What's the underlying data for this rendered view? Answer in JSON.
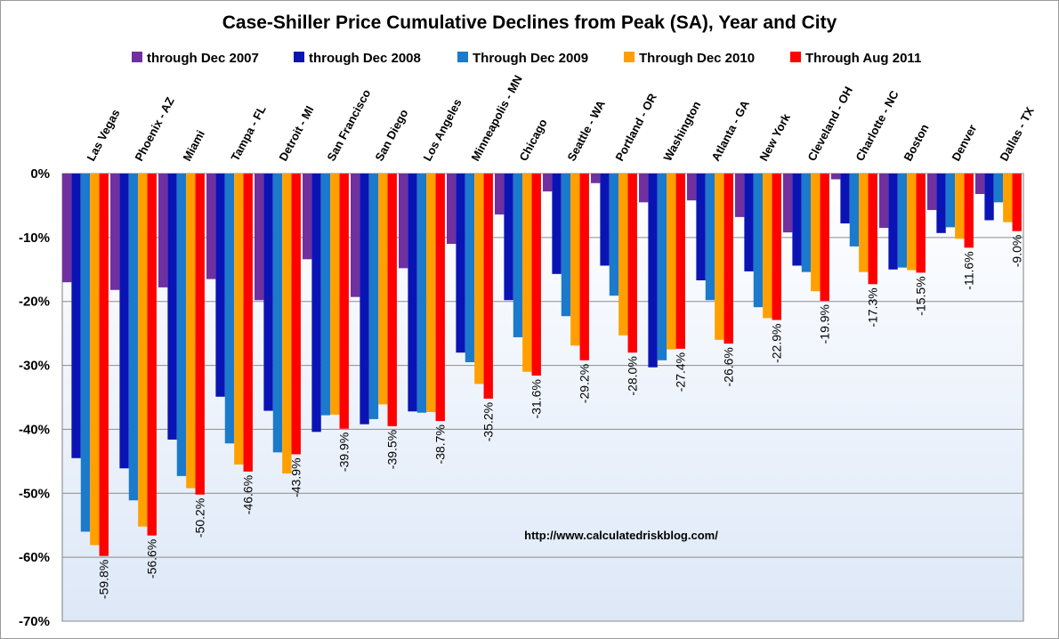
{
  "chart_data": {
    "type": "bar",
    "title": "Case-Shiller Price Cumulative Declines from Peak (SA),  Year and City",
    "source_text": "http://www.calculatedriskblog.com/",
    "ylim": [
      -70,
      0
    ],
    "y_ticks": [
      0,
      -10,
      -20,
      -30,
      -40,
      -50,
      -60,
      -70
    ],
    "y_tick_labels": [
      "0%",
      "-10%",
      "-20%",
      "-30%",
      "-40%",
      "-50%",
      "-60%",
      "-70%"
    ],
    "grid": true,
    "legend_position": "top",
    "categories": [
      "Las Vegas",
      "Phoenix - AZ",
      "Miami",
      "Tampa - FL",
      "Detroit - MI",
      "San Francisco",
      "San Diego",
      "Los Angeles",
      "Minneapolis - MN",
      "Chicago",
      "Seattle - WA",
      "Portland - OR",
      "Washington",
      "Atlanta - GA",
      "New York",
      "Cleveland - OH",
      "Charlotte - NC",
      "Boston",
      "Denver",
      "Dallas - TX"
    ],
    "series": [
      {
        "name": "through Dec 2007",
        "color": "#7030A0",
        "values": [
          -17.0,
          -18.2,
          -17.8,
          -16.5,
          -19.8,
          -13.4,
          -19.3,
          -14.8,
          -11.0,
          -6.4,
          -2.8,
          -1.5,
          -4.5,
          -4.2,
          -6.8,
          -9.2,
          -0.9,
          -8.5,
          -5.7,
          -3.2
        ]
      },
      {
        "name": "through Dec 2008",
        "color": "#0A14B4",
        "values": [
          -44.5,
          -46.1,
          -41.6,
          -34.9,
          -37.1,
          -40.4,
          -39.2,
          -37.2,
          -28.0,
          -19.8,
          -15.7,
          -14.4,
          -30.3,
          -16.7,
          -15.3,
          -14.4,
          -7.8,
          -15.0,
          -9.3,
          -7.3
        ]
      },
      {
        "name": "Through Dec 2009",
        "color": "#1B7ACB",
        "values": [
          -56.0,
          -51.1,
          -47.3,
          -42.2,
          -43.6,
          -37.8,
          -38.4,
          -37.4,
          -29.5,
          -25.6,
          -22.3,
          -19.1,
          -29.2,
          -19.8,
          -20.9,
          -15.4,
          -11.4,
          -14.7,
          -8.4,
          -4.5
        ]
      },
      {
        "name": "Through Dec 2010",
        "color": "#FFA000",
        "values": [
          -58.1,
          -55.2,
          -49.2,
          -45.5,
          -46.9,
          -37.7,
          -36.1,
          -37.3,
          -32.9,
          -31.0,
          -26.9,
          -25.3,
          -27.5,
          -26.0,
          -22.6,
          -18.4,
          -15.4,
          -15.1,
          -10.2,
          -7.6
        ]
      },
      {
        "name": "Through Aug 2011",
        "color": "#FF0000",
        "values": [
          -59.8,
          -56.6,
          -50.2,
          -46.6,
          -43.9,
          -39.9,
          -39.5,
          -38.7,
          -35.2,
          -31.6,
          -29.2,
          -28.0,
          -27.4,
          -26.6,
          -22.9,
          -19.9,
          -17.3,
          -15.5,
          -11.6,
          -9.0
        ]
      }
    ],
    "data_labels": [
      "-59.8%",
      "-56.6%",
      "-50.2%",
      "-46.6%",
      "-43.9%",
      "-39.9%",
      "-39.5%",
      "-38.7%",
      "-35.2%",
      "-31.6%",
      "-29.2%",
      "-28.0%",
      "-27.4%",
      "-26.6%",
      "-22.9%",
      "-19.9%",
      "-17.3%",
      "-15.5%",
      "-11.6%",
      "-9.0%"
    ]
  }
}
